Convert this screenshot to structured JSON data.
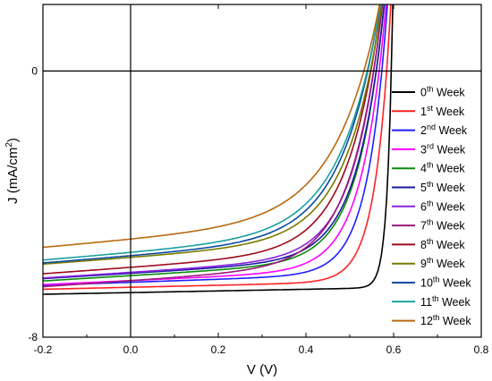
{
  "chart_data": {
    "type": "line",
    "xlabel": "V (V)",
    "ylabel": "J (mA/cm",
    "ylabel_sup": "2",
    "ylabel_close": ")",
    "xlim": [
      -0.2,
      0.8
    ],
    "ylim": [
      -8,
      2
    ],
    "x_ticks": [
      "-0.2",
      "0.0",
      "0.2",
      "0.4",
      "0.6",
      "0.8"
    ],
    "y_ticks": [
      "0",
      "-8"
    ],
    "grid": false,
    "legend_position": "right",
    "series": [
      {
        "name_num": "0",
        "name_sup": "th",
        "name_rest": " Week",
        "color": "#000000",
        "jsc": -6.66,
        "voc": 0.595,
        "m": 0.012,
        "rs": 2.0,
        "slope": 0.25
      },
      {
        "name_num": "1",
        "name_sup": "st",
        "name_rest": " Week",
        "color": "#ff2222",
        "jsc": -6.5,
        "voc": 0.585,
        "m": 0.035,
        "rs": 4.0,
        "slope": 0.3
      },
      {
        "name_num": "2",
        "name_sup": "nd",
        "name_rest": " Week",
        "color": "#1f1fff",
        "jsc": -6.35,
        "voc": 0.575,
        "m": 0.045,
        "rs": 5.2,
        "slope": 0.45
      },
      {
        "name_num": "3",
        "name_sup": "rd",
        "name_rest": " Week",
        "color": "#ff00ff",
        "jsc": -6.3,
        "voc": 0.57,
        "m": 0.055,
        "rs": 6.5,
        "slope": 0.6
      },
      {
        "name_num": "4",
        "name_sup": "th",
        "name_rest": " Week",
        "color": "#0a8a0a",
        "jsc": -6.15,
        "voc": 0.565,
        "m": 0.06,
        "rs": 7.5,
        "slope": 0.8
      },
      {
        "name_num": "5",
        "name_sup": "th",
        "name_rest": " Week",
        "color": "#1a1aa0",
        "jsc": -6.08,
        "voc": 0.565,
        "m": 0.062,
        "rs": 8.0,
        "slope": 0.8
      },
      {
        "name_num": "6",
        "name_sup": "th",
        "name_rest": " Week",
        "color": "#8a22e0",
        "jsc": -6.05,
        "voc": 0.56,
        "m": 0.065,
        "rs": 8.5,
        "slope": 0.85
      },
      {
        "name_num": "7",
        "name_sup": "th",
        "name_rest": " Week",
        "color": "#9a1a7a",
        "jsc": -6.3,
        "voc": 0.56,
        "m": 0.07,
        "rs": 9.0,
        "slope": 0.9
      },
      {
        "name_num": "8",
        "name_sup": "th",
        "name_rest": " Week",
        "color": "#9a0a1a",
        "jsc": -5.9,
        "voc": 0.555,
        "m": 0.075,
        "rs": 9.5,
        "slope": 0.95
      },
      {
        "name_num": "9",
        "name_sup": "th",
        "name_rest": " Week",
        "color": "#7a7a00",
        "jsc": -5.6,
        "voc": 0.555,
        "m": 0.08,
        "rs": 10.5,
        "slope": 1.0
      },
      {
        "name_num": "10",
        "name_sup": "th",
        "name_rest": " Week",
        "color": "#0a4aa0",
        "jsc": -5.55,
        "voc": 0.55,
        "m": 0.085,
        "rs": 11.0,
        "slope": 1.05
      },
      {
        "name_num": "11",
        "name_sup": "th",
        "name_rest": " Week",
        "color": "#1aa0a0",
        "jsc": -5.45,
        "voc": 0.55,
        "m": 0.09,
        "rs": 11.5,
        "slope": 1.1
      },
      {
        "name_num": "12",
        "name_sup": "th",
        "name_rest": " Week",
        "color": "#b86a10",
        "jsc": -5.05,
        "voc": 0.545,
        "m": 0.1,
        "rs": 12.5,
        "slope": 1.15
      }
    ]
  }
}
